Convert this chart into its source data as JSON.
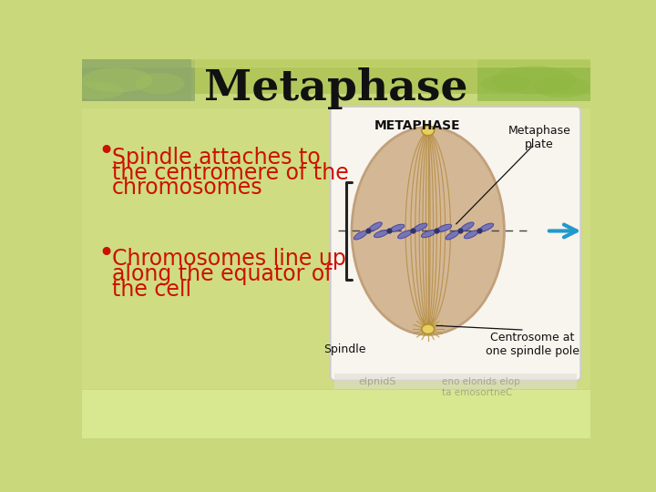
{
  "title": "Metaphase",
  "title_fontsize": 34,
  "title_color": "#111111",
  "title_font": "DejaVu Serif",
  "bullet1_lines": [
    "Spindle attaches to",
    "the centromere of the",
    "chromosomes"
  ],
  "bullet2_lines": [
    "Chromosomes line up",
    "along the equator of",
    "the cell"
  ],
  "bullet_color": "#cc1100",
  "bullet_fontsize": 17,
  "bullet_dot_size": 22,
  "slide_bg": "#c8d87a",
  "slide_bg_center": "#d4e088",
  "diagram_box_color": "#f8f4ee",
  "diagram_box_border": "#cccccc",
  "cell_fill": "#d4b896",
  "cell_border": "#c0a07a",
  "spindle_color": "#b89048",
  "chromosome_color": "#7070b8",
  "chromosome_edge": "#4040a0",
  "centromere_fill": "#e8d060",
  "centromere_edge": "#b09030",
  "arrow_color": "#2299cc",
  "bracket_color": "#222222",
  "label_color": "#111111",
  "label_fontsize": 9,
  "metaphase_label_fontsize": 10,
  "diagram_label_metaphase": "METAPHASE",
  "diagram_label_plate": "Metaphase\nplate",
  "diagram_label_spindle": "Spindle",
  "diagram_label_centrosome": "Centrosome at\none spindle pole",
  "reflect_text1": "elpnidS",
  "reflect_text2": "eno elonids elop\nta emosortneC",
  "top_bg_color": "#b0c860",
  "bottom_bg_color": "#d8e898"
}
